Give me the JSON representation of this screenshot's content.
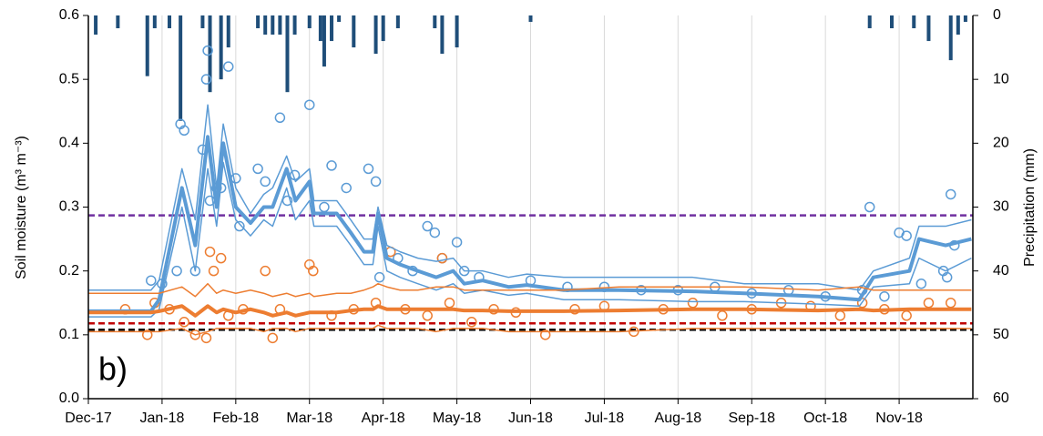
{
  "chart_data": {
    "type": "line",
    "annotation": "b)",
    "y_label": "Soil moisture (m³ m⁻³)",
    "y2_label": "Precipitation (mm)",
    "xlim": [
      0,
      12
    ],
    "xticks": [
      {
        "value": 0,
        "label": "Dec-17"
      },
      {
        "value": 1,
        "label": "Jan-18"
      },
      {
        "value": 2,
        "label": "Feb-18"
      },
      {
        "value": 3,
        "label": "Mar-18"
      },
      {
        "value": 4,
        "label": "Apr-18"
      },
      {
        "value": 5,
        "label": "May-18"
      },
      {
        "value": 6,
        "label": "Jun-18"
      },
      {
        "value": 7,
        "label": "Jul-18"
      },
      {
        "value": 8,
        "label": "Aug-18"
      },
      {
        "value": 9,
        "label": "Sep-18"
      },
      {
        "value": 10,
        "label": "Oct-18"
      },
      {
        "value": 11,
        "label": "Nov-18"
      }
    ],
    "ylim": [
      0,
      0.6
    ],
    "yticks": [
      {
        "value": 0,
        "label": "0.0"
      },
      0.1,
      0.2,
      0.3,
      0.4,
      0.5,
      0.6
    ],
    "y2lim": [
      0,
      60
    ],
    "y2ticks": [
      0,
      10,
      20,
      30,
      40,
      50,
      60
    ],
    "y2_inverted": true,
    "grid": "x",
    "x": [
      0,
      0.85,
      0.96,
      1.27,
      1.45,
      1.62,
      1.74,
      1.83,
      2.0,
      2.2,
      2.38,
      2.5,
      2.69,
      2.81,
      3.0,
      3.06,
      3.37,
      3.56,
      3.74,
      3.86,
      3.93,
      4.05,
      4.23,
      4.47,
      4.72,
      4.95,
      5.1,
      5.35,
      5.7,
      5.95,
      6.45,
      7.2,
      8.2,
      8.9,
      9.9,
      10.46,
      10.65,
      11.14,
      11.27,
      11.63,
      11.98
    ],
    "series": [
      {
        "axis": "y",
        "color": "#5b9bd5",
        "width": 1.5,
        "values": [
          0.17,
          0.17,
          0.185,
          0.36,
          0.28,
          0.46,
          0.33,
          0.43,
          0.33,
          0.29,
          0.32,
          0.33,
          0.38,
          0.34,
          0.36,
          0.31,
          0.31,
          0.28,
          0.25,
          0.25,
          0.3,
          0.24,
          0.23,
          0.22,
          0.215,
          0.22,
          0.2,
          0.2,
          0.19,
          0.195,
          0.19,
          0.19,
          0.19,
          0.18,
          0.18,
          0.17,
          0.2,
          0.22,
          0.27,
          0.27,
          0.28
        ]
      },
      {
        "axis": "y",
        "color": "#5b9bd5",
        "width": 1.5,
        "values": [
          0.128,
          0.128,
          0.14,
          0.3,
          0.2,
          0.36,
          0.27,
          0.37,
          0.28,
          0.255,
          0.28,
          0.27,
          0.33,
          0.28,
          0.31,
          0.27,
          0.27,
          0.24,
          0.21,
          0.21,
          0.27,
          0.2,
          0.19,
          0.18,
          0.17,
          0.18,
          0.165,
          0.17,
          0.162,
          0.165,
          0.155,
          0.155,
          0.152,
          0.152,
          0.148,
          0.145,
          0.175,
          0.18,
          0.22,
          0.2,
          0.22
        ]
      },
      {
        "axis": "y",
        "color": "#5b9bd5",
        "width": 4,
        "values": [
          0.137,
          0.137,
          0.155,
          0.33,
          0.24,
          0.41,
          0.3,
          0.4,
          0.3,
          0.275,
          0.3,
          0.3,
          0.36,
          0.31,
          0.34,
          0.29,
          0.29,
          0.26,
          0.23,
          0.23,
          0.29,
          0.22,
          0.21,
          0.2,
          0.19,
          0.2,
          0.18,
          0.185,
          0.175,
          0.178,
          0.17,
          0.17,
          0.168,
          0.165,
          0.16,
          0.155,
          0.19,
          0.2,
          0.25,
          0.24,
          0.25
        ]
      },
      {
        "axis": "y",
        "color": "#ed7d31",
        "width": 1.5,
        "values": [
          0.165,
          0.165,
          0.165,
          0.175,
          0.16,
          0.18,
          0.165,
          0.17,
          0.165,
          0.17,
          0.165,
          0.16,
          0.165,
          0.16,
          0.165,
          0.16,
          0.165,
          0.165,
          0.17,
          0.175,
          0.18,
          0.175,
          0.17,
          0.17,
          0.175,
          0.175,
          0.17,
          0.17,
          0.17,
          0.17,
          0.17,
          0.175,
          0.175,
          0.175,
          0.17,
          0.175,
          0.17,
          0.17,
          0.17,
          0.17,
          0.17
        ]
      },
      {
        "axis": "y",
        "color": "#ed7d31",
        "width": 1.5,
        "values": [
          0.105,
          0.105,
          0.105,
          0.11,
          0.1,
          0.105,
          0.11,
          0.11,
          0.11,
          0.11,
          0.105,
          0.11,
          0.11,
          0.105,
          0.11,
          0.11,
          0.11,
          0.11,
          0.11,
          0.11,
          0.115,
          0.11,
          0.11,
          0.11,
          0.105,
          0.11,
          0.11,
          0.11,
          0.105,
          0.105,
          0.105,
          0.105,
          0.11,
          0.11,
          0.11,
          0.11,
          0.11,
          0.11,
          0.11,
          0.11,
          0.11
        ]
      },
      {
        "axis": "y",
        "color": "#ed7d31",
        "width": 4,
        "values": [
          0.135,
          0.135,
          0.137,
          0.145,
          0.13,
          0.145,
          0.135,
          0.14,
          0.135,
          0.14,
          0.135,
          0.13,
          0.135,
          0.13,
          0.135,
          0.135,
          0.135,
          0.138,
          0.14,
          0.14,
          0.145,
          0.14,
          0.14,
          0.14,
          0.14,
          0.14,
          0.138,
          0.138,
          0.137,
          0.137,
          0.137,
          0.138,
          0.14,
          0.14,
          0.138,
          0.14,
          0.138,
          0.14,
          0.14,
          0.14,
          0.14
        ]
      }
    ],
    "scatter": [
      {
        "color": "#5b9bd5",
        "x": [
          0.85,
          1.0,
          1.2,
          1.25,
          1.3,
          1.45,
          1.55,
          1.6,
          1.62,
          1.65,
          1.74,
          1.8,
          1.9,
          2.0,
          2.05,
          2.3,
          2.4,
          2.6,
          2.7,
          2.8,
          3.0,
          3.2,
          3.3,
          3.5,
          3.8,
          3.9,
          3.95,
          4.2,
          4.4,
          4.6,
          4.7,
          4.8,
          5.0,
          5.1,
          5.3,
          6.0,
          6.5,
          7.0,
          7.5,
          8.0,
          8.5,
          9.0,
          9.5,
          10.0,
          10.5,
          10.6,
          10.8,
          11.0,
          11.1,
          11.3,
          11.6,
          11.65,
          11.7,
          11.75
        ],
        "values": [
          0.185,
          0.18,
          0.2,
          0.43,
          0.42,
          0.2,
          0.39,
          0.5,
          0.545,
          0.31,
          0.33,
          0.33,
          0.52,
          0.345,
          0.27,
          0.36,
          0.34,
          0.44,
          0.31,
          0.35,
          0.46,
          0.3,
          0.365,
          0.33,
          0.36,
          0.34,
          0.19,
          0.22,
          0.2,
          0.27,
          0.26,
          0.22,
          0.245,
          0.2,
          0.19,
          0.185,
          0.175,
          0.175,
          0.17,
          0.17,
          0.175,
          0.165,
          0.17,
          0.16,
          0.17,
          0.3,
          0.16,
          0.26,
          0.255,
          0.18,
          0.2,
          0.19,
          0.32,
          0.24
        ]
      },
      {
        "color": "#ed7d31",
        "x": [
          0.5,
          0.8,
          0.9,
          1.1,
          1.3,
          1.45,
          1.6,
          1.65,
          1.7,
          1.8,
          1.9,
          2.1,
          2.4,
          2.5,
          2.6,
          3.0,
          3.05,
          3.3,
          3.6,
          3.9,
          4.1,
          4.3,
          4.6,
          4.8,
          4.9,
          5.2,
          5.5,
          5.8,
          6.2,
          6.6,
          7.0,
          7.4,
          7.8,
          8.2,
          8.6,
          9.0,
          9.4,
          9.8,
          10.2,
          10.5,
          10.8,
          11.1,
          11.4,
          11.7
        ],
        "values": [
          0.14,
          0.1,
          0.15,
          0.14,
          0.12,
          0.1,
          0.095,
          0.23,
          0.2,
          0.22,
          0.13,
          0.14,
          0.2,
          0.095,
          0.14,
          0.21,
          0.2,
          0.13,
          0.14,
          0.15,
          0.23,
          0.14,
          0.13,
          0.22,
          0.15,
          0.12,
          0.14,
          0.135,
          0.1,
          0.14,
          0.145,
          0.105,
          0.14,
          0.15,
          0.13,
          0.14,
          0.15,
          0.145,
          0.13,
          0.15,
          0.14,
          0.13,
          0.15,
          0.15
        ]
      }
    ],
    "reference_lines": [
      {
        "value": 0.287,
        "color": "#7030a0"
      },
      {
        "value": 0.118,
        "color": "#c00000"
      },
      {
        "value": 0.108,
        "color": "#000000"
      }
    ],
    "bars": {
      "axis": "y2",
      "color": "#1f4e79",
      "x": [
        0.1,
        0.4,
        0.8,
        0.9,
        1.1,
        1.25,
        1.55,
        1.65,
        1.8,
        1.9,
        2.3,
        2.4,
        2.5,
        2.6,
        2.7,
        2.8,
        3.0,
        3.15,
        3.2,
        3.3,
        3.4,
        3.6,
        3.9,
        4.0,
        4.2,
        4.7,
        4.8,
        5.0,
        6.0,
        10.6,
        10.9,
        11.2,
        11.4,
        11.7,
        11.8,
        11.9
      ],
      "values": [
        3,
        2,
        9.5,
        2,
        2,
        16.5,
        2,
        12,
        10,
        5,
        2,
        3,
        3,
        3,
        12,
        3,
        2,
        4,
        8,
        4,
        1,
        5,
        6,
        4,
        2,
        2,
        6,
        5,
        1,
        2,
        2,
        2,
        4,
        7,
        3,
        1
      ]
    }
  }
}
